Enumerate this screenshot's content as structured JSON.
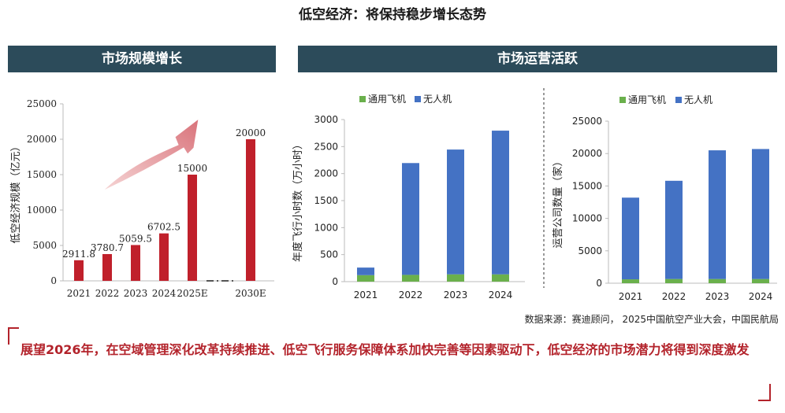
{
  "page": {
    "title": "低空经济：将保持稳步增长态势"
  },
  "panels": {
    "left_title": "市场规模增长",
    "right_title": "市场运营活跃"
  },
  "colors": {
    "bar_red": "#c0202b",
    "green": "#6ab04c",
    "blue": "#4472c4",
    "banner": "#2c4b5a",
    "accent": "#b3232b"
  },
  "chart_data": [
    {
      "type": "bar",
      "categories": [
        "2021",
        "2022",
        "2023",
        "2024",
        "2025E",
        "2030E"
      ],
      "values": [
        2911.8,
        3780.7,
        5059.5,
        6702.5,
        15000,
        20000
      ],
      "value_labels": [
        "2911.8",
        "3780.7",
        "5059.5",
        "6702.5",
        "15000",
        "20000"
      ],
      "ylabel": "低空经济规模（亿元）",
      "ylim": [
        0,
        25000
      ],
      "yticks": [
        0,
        5000,
        10000,
        15000,
        20000,
        25000
      ],
      "grid": false
    },
    {
      "type": "bar",
      "stacked": true,
      "categories": [
        "2021",
        "2022",
        "2023",
        "2024"
      ],
      "series": [
        {
          "name": "通用飞机",
          "values": [
            120,
            125,
            135,
            135
          ]
        },
        {
          "name": "无人机",
          "values": [
            140,
            2070,
            2310,
            2660
          ]
        }
      ],
      "ylabel": "年度飞行小时数（万小时）",
      "ylim": [
        0,
        3000
      ],
      "yticks": [
        0,
        500,
        1000,
        1500,
        2000,
        2500,
        3000
      ],
      "legend": "top",
      "grid": false
    },
    {
      "type": "bar",
      "stacked": true,
      "categories": [
        "2021",
        "2022",
        "2023",
        "2024"
      ],
      "series": [
        {
          "name": "通用飞机",
          "values": [
            600,
            650,
            650,
            650
          ]
        },
        {
          "name": "无人机",
          "values": [
            12600,
            15150,
            19850,
            20050
          ]
        }
      ],
      "ylabel": "运营公司数量（家）",
      "ylim": [
        0,
        25000
      ],
      "yticks": [
        0,
        5000,
        10000,
        15000,
        20000,
        25000
      ],
      "legend": "top",
      "grid": false
    }
  ],
  "footer": {
    "source": "数据来源：赛迪顾问， 2025中国航空产业大会，中国民航局",
    "conclusion": "展望2026年，在空域管理深化改革持续推进、低空飞行服务保障体系加快完善等因素驱动下，低空经济的市场潜力将得到深度激发"
  }
}
